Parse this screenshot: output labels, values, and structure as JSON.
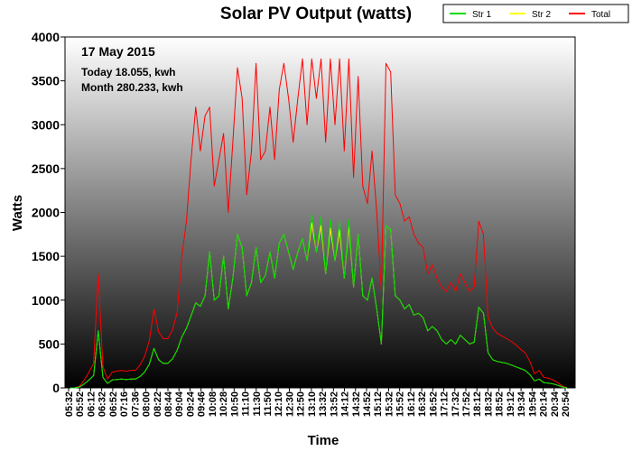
{
  "chart_data": {
    "type": "line",
    "title": "Solar PV Output (watts)",
    "xlabel": "Time",
    "ylabel": "Watts",
    "ylim": [
      0,
      4000
    ],
    "yticks": [
      0,
      500,
      1000,
      1500,
      2000,
      2500,
      3000,
      3500,
      4000
    ],
    "grid": false,
    "legend_position": "top-right",
    "annotations": {
      "date": "17 May 2015",
      "today": "Today 18.055, kwh",
      "month": "Month 280.233, kwh"
    },
    "x_tick_labels": [
      "05:32",
      "05:52",
      "06:12",
      "06:32",
      "06:52",
      "07:16",
      "07:36",
      "08:00",
      "08:22",
      "08:44",
      "09:04",
      "09:24",
      "09:46",
      "10:08",
      "10:28",
      "10:50",
      "11:10",
      "11:30",
      "11:50",
      "12:10",
      "12:30",
      "12:50",
      "13:10",
      "13:32",
      "13:52",
      "14:12",
      "14:32",
      "14:52",
      "15:12",
      "15:32",
      "15:52",
      "16:12",
      "16:32",
      "16:52",
      "17:12",
      "17:32",
      "17:52",
      "18:12",
      "18:32",
      "18:52",
      "19:12",
      "19:34",
      "19:54",
      "20:14",
      "20:34",
      "20:54"
    ],
    "series": [
      {
        "name": "Str 1",
        "color": "#00dd00",
        "values": [
          0,
          0,
          10,
          45,
          90,
          140,
          650,
          120,
          50,
          90,
          95,
          100,
          95,
          100,
          100,
          130,
          180,
          270,
          450,
          320,
          280,
          280,
          330,
          430,
          580,
          680,
          820,
          970,
          930,
          1050,
          1550,
          1000,
          1050,
          1500,
          900,
          1250,
          1750,
          1600,
          1050,
          1200,
          1600,
          1200,
          1280,
          1550,
          1250,
          1650,
          1750,
          1550,
          1350,
          1550,
          1700,
          1450,
          1980,
          1550,
          1950,
          1300,
          1920,
          1450,
          1900,
          1250,
          1920,
          1150,
          1750,
          1050,
          1000,
          1250,
          900,
          500,
          1850,
          1800,
          1050,
          1000,
          900,
          950,
          830,
          850,
          800,
          650,
          700,
          650,
          550,
          500,
          550,
          500,
          600,
          550,
          500,
          520,
          920,
          850,
          400,
          320,
          300,
          290,
          280,
          260,
          240,
          220,
          200,
          150,
          80,
          100,
          60,
          55,
          45,
          30,
          10,
          0
        ]
      },
      {
        "name": "Str 2",
        "color": "#ffff00",
        "values": [
          0,
          0,
          10,
          45,
          90,
          140,
          650,
          120,
          50,
          90,
          95,
          100,
          95,
          100,
          100,
          130,
          180,
          270,
          450,
          320,
          280,
          280,
          330,
          430,
          580,
          680,
          820,
          970,
          930,
          1050,
          1550,
          1000,
          1050,
          1500,
          900,
          1250,
          1750,
          1600,
          1050,
          1200,
          1600,
          1200,
          1280,
          1550,
          1250,
          1650,
          1750,
          1550,
          1350,
          1550,
          1700,
          1450,
          1880,
          1550,
          1850,
          1300,
          1820,
          1450,
          1800,
          1250,
          1850,
          1150,
          1750,
          1050,
          1000,
          1250,
          900,
          500,
          1850,
          1800,
          1050,
          1000,
          900,
          950,
          830,
          850,
          800,
          650,
          700,
          650,
          550,
          500,
          550,
          500,
          600,
          550,
          500,
          520,
          920,
          850,
          400,
          320,
          300,
          290,
          280,
          260,
          240,
          220,
          200,
          150,
          80,
          100,
          60,
          55,
          45,
          30,
          10,
          0
        ]
      },
      {
        "name": "Total",
        "color": "#ff0000",
        "values": [
          0,
          0,
          20,
          90,
          180,
          280,
          1300,
          240,
          100,
          180,
          190,
          200,
          190,
          200,
          200,
          260,
          360,
          540,
          900,
          640,
          560,
          560,
          660,
          860,
          1500,
          1900,
          2600,
          3200,
          2700,
          3100,
          3200,
          2300,
          2600,
          2900,
          2000,
          2800,
          3650,
          3300,
          2200,
          2700,
          3700,
          2600,
          2700,
          3200,
          2600,
          3400,
          3700,
          3300,
          2800,
          3300,
          3750,
          3000,
          3750,
          3300,
          3750,
          2800,
          3750,
          3000,
          3750,
          2700,
          3750,
          2400,
          3550,
          2300,
          2100,
          2700,
          2000,
          1100,
          3700,
          3600,
          2200,
          2100,
          1900,
          1950,
          1750,
          1650,
          1600,
          1300,
          1400,
          1250,
          1150,
          1100,
          1200,
          1100,
          1300,
          1200,
          1100,
          1150,
          1900,
          1750,
          800,
          680,
          620,
          590,
          560,
          530,
          490,
          440,
          400,
          300,
          160,
          200,
          120,
          110,
          90,
          60,
          20,
          0
        ]
      }
    ]
  }
}
